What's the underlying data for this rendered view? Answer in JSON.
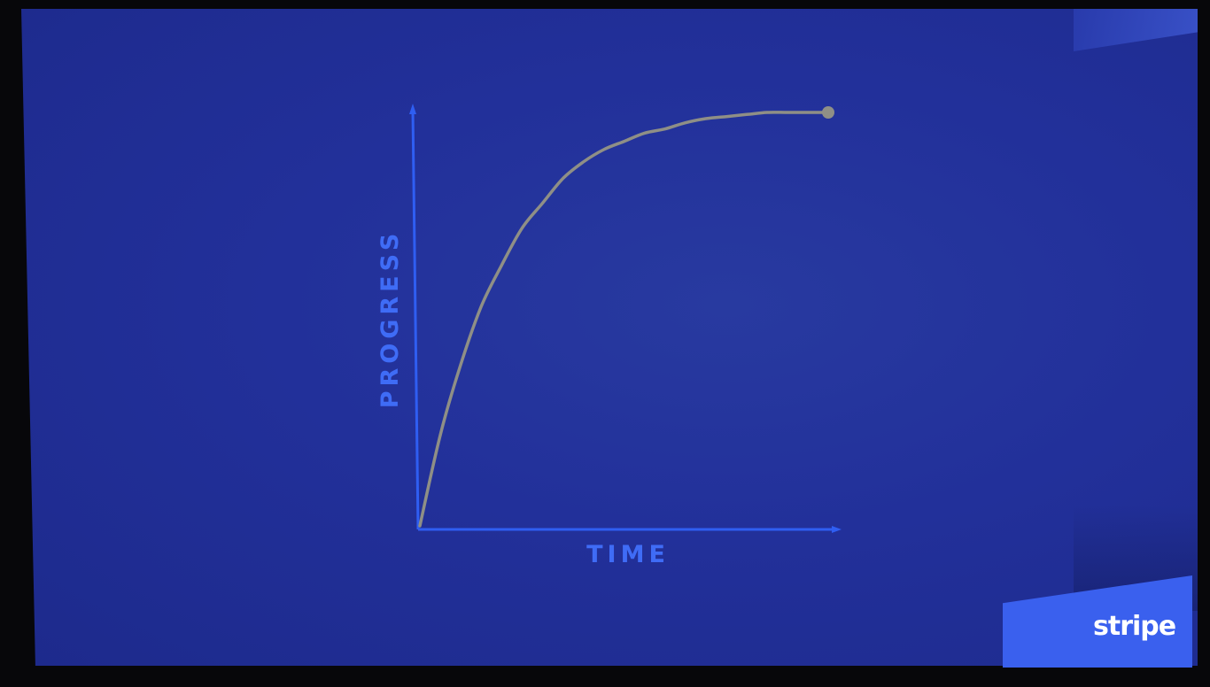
{
  "slide": {
    "background_color": "#22309a",
    "brand": {
      "logo_text": "stripe",
      "color": "#3a60ee"
    }
  },
  "chart_data": {
    "type": "line",
    "title": "",
    "xlabel": "TIME",
    "ylabel": "PROGRESS",
    "grid": false,
    "tick_labels": false,
    "xlim": [
      0,
      1
    ],
    "ylim": [
      0,
      1
    ],
    "series": [
      {
        "shape": "concave saturating curve",
        "color": "#8f8f86",
        "x": [
          0,
          0.05,
          0.1,
          0.15,
          0.2,
          0.25,
          0.3,
          0.35,
          0.4,
          0.45,
          0.5,
          0.55,
          0.6,
          0.65,
          0.7,
          0.75,
          0.8,
          0.85,
          0.9,
          0.95,
          1
        ],
        "y": [
          0,
          0.22,
          0.39,
          0.53,
          0.63,
          0.72,
          0.78,
          0.84,
          0.88,
          0.91,
          0.93,
          0.95,
          0.96,
          0.975,
          0.985,
          0.99,
          0.995,
          1,
          1,
          1,
          1
        ],
        "end_marker": true
      }
    ],
    "colors": {
      "axis": "#2f5ef2",
      "axis_label": "#3f6cf6"
    }
  }
}
